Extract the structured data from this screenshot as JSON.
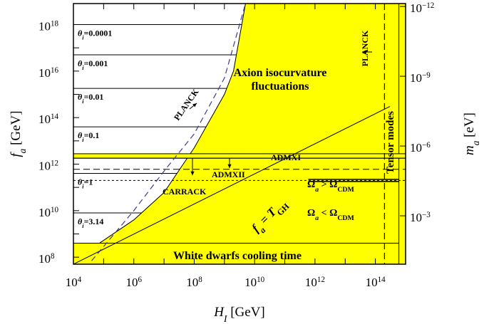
{
  "chart_data": {
    "type": "area",
    "title": "",
    "x_axis": {
      "label_main": "H",
      "label_sub": "I",
      "label_unit": " [GeV]",
      "scale": "log",
      "range": [
        10000,
        1000000000000000
      ],
      "ticks": [
        {
          "base": "10",
          "exp": "4",
          "value": 10000
        },
        {
          "base": "10",
          "exp": "6",
          "value": 1000000
        },
        {
          "base": "10",
          "exp": "8",
          "value": 100000000
        },
        {
          "base": "10",
          "exp": "10",
          "value": 10000000000
        },
        {
          "base": "10",
          "exp": "12",
          "value": 1000000000000
        },
        {
          "base": "10",
          "exp": "14",
          "value": 100000000000000
        }
      ]
    },
    "y_axis": {
      "label_main": "f",
      "label_sub": "a",
      "label_unit": " [GeV]",
      "scale": "log",
      "range": [
        50000000,
        8000000000000000000
      ],
      "ticks": [
        {
          "base": "10",
          "exp": "8",
          "value": 100000000
        },
        {
          "base": "10",
          "exp": "10",
          "value": 10000000000
        },
        {
          "base": "10",
          "exp": "12",
          "value": 1000000000000
        },
        {
          "base": "10",
          "exp": "14",
          "value": 100000000000000
        },
        {
          "base": "10",
          "exp": "16",
          "value": 10000000000000000
        },
        {
          "base": "10",
          "exp": "18",
          "value": 1000000000000000000
        }
      ]
    },
    "y2_axis": {
      "label_main": "m",
      "label_sub": "a",
      "label_unit": " [eV]",
      "scale": "log",
      "ticks": [
        {
          "base": "10",
          "exp": "−12",
          "at_fa": 6000000000000000000
        },
        {
          "base": "10",
          "exp": "−9",
          "at_fa": 6000000000000000
        },
        {
          "base": "10",
          "exp": "−6",
          "at_fa": 6000000000000
        },
        {
          "base": "10",
          "exp": "−3",
          "at_fa": 6000000000
        }
      ]
    },
    "regions": {
      "isocurvature": {
        "label_line1": "Axion isocurvature",
        "label_line2": "fluctuations",
        "boundary": [
          [
            10000,
            70000000
          ],
          [
            1000000,
            4000000000
          ],
          [
            10000000,
            60000000000
          ],
          [
            100000000,
            5000000000000
          ],
          [
            1000000000,
            1000000000000000
          ],
          [
            2000000000,
            10000000000000000
          ],
          [
            5000000000,
            8000000000000000000
          ]
        ]
      },
      "white_dwarfs": {
        "label": "White dwarfs cooling time",
        "fa_max": 400000000
      },
      "tensor_modes": {
        "label": "Tensor modes",
        "H_min": 600000000000000
      },
      "admx_band": {
        "fa_min": 1800000000000,
        "fa_max": 2800000000000
      }
    },
    "lines": {
      "planck_curve": {
        "label": "PLANCK",
        "points": [
          [
            40000,
            70000000
          ],
          [
            1000000,
            10000000000
          ],
          [
            10000000,
            500000000000
          ],
          [
            100000000,
            20000000000000
          ],
          [
            1000000000,
            5000000000000000
          ],
          [
            5000000000,
            8000000000000000000
          ]
        ]
      },
      "planck_vertical": {
        "label": "PLANCK",
        "H": 200000000000000
      },
      "admx1": {
        "label": "ADMXI",
        "fa": 1800000000000
      },
      "admx2": {
        "label": "ADMXII",
        "fa": 600000000000
      },
      "carrack": {
        "label": "CARRACK",
        "fa": 200000000000
      },
      "tgh": {
        "label_main": "f",
        "label_sub": "a",
        "label_eq": " = T",
        "label_tsub": "GH",
        "points": [
          [
            10000,
            50000000
          ],
          [
            300000000000000,
            300000000000000
          ]
        ]
      },
      "omega_boundary": {
        "fa": 200000000000,
        "H_min": 600000000000,
        "above_label": [
          "Ω",
          "a",
          " > Ω",
          "CDM"
        ],
        "below_label": [
          "Ω",
          "a",
          " < Ω",
          "CDM"
        ]
      }
    },
    "theta_lines": [
      {
        "label": "θ",
        "sub": "i",
        "value": "=0.0001",
        "fa": 1000000000000000000
      },
      {
        "label": "θ",
        "sub": "i",
        "value": "=0.001",
        "fa": 50000000000000000
      },
      {
        "label": "θ",
        "sub": "i",
        "value": "=0.01",
        "fa": 1800000000000000
      },
      {
        "label": "θ",
        "sub": "i",
        "value": "=0.1",
        "fa": 40000000000000
      },
      {
        "label": "θ",
        "sub": "i",
        "value": "=1",
        "fa": 400000000000
      },
      {
        "label": "θ",
        "sub": "i",
        "value": "=3.14",
        "fa": 8000000000
      }
    ],
    "colors": {
      "fill": "#ffff00",
      "line": "#000000",
      "planck_curve": "#3b3b8f"
    }
  }
}
